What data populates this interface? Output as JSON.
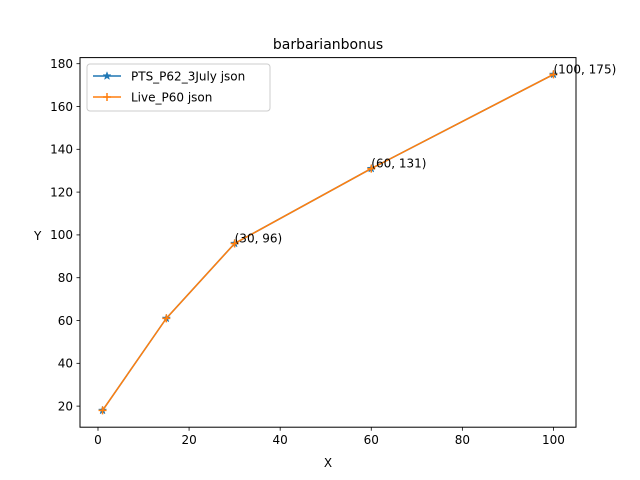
{
  "chart_data": {
    "type": "line",
    "title": "barbarianbonus",
    "xlabel": "X",
    "ylabel": "Y",
    "xlim": [
      -3.95,
      104.95
    ],
    "ylim": [
      10.15,
      182.85
    ],
    "xticks": [
      0,
      20,
      40,
      60,
      80,
      100
    ],
    "yticks": [
      20,
      40,
      60,
      80,
      100,
      120,
      140,
      160,
      180
    ],
    "grid": false,
    "legend_position": "top-left",
    "series": [
      {
        "name": "PTS_P62_3July json",
        "color": "#1f77b4",
        "marker": "star",
        "x": [
          1,
          15,
          30,
          60,
          100
        ],
        "y": [
          18,
          61,
          96,
          131,
          175
        ]
      },
      {
        "name": "Live_P60 json",
        "color": "#ff7f0e",
        "marker": "plus",
        "x": [
          1,
          15,
          30,
          60,
          100
        ],
        "y": [
          18,
          61,
          96,
          131,
          175
        ]
      }
    ],
    "annotations": [
      {
        "text": "(30, 96)",
        "x": 30,
        "y": 96
      },
      {
        "text": "(60, 131)",
        "x": 60,
        "y": 131
      },
      {
        "text": "(100, 175)",
        "x": 100,
        "y": 175
      }
    ]
  }
}
